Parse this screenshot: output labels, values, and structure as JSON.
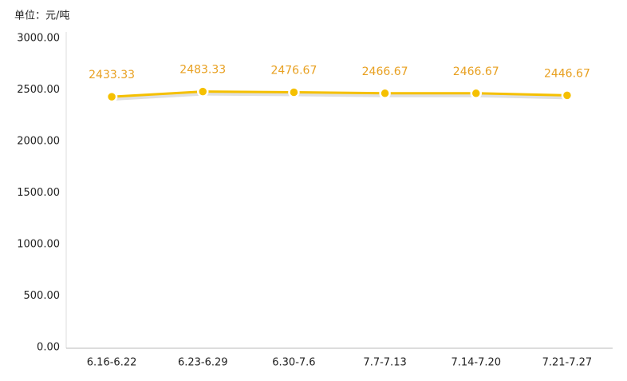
{
  "chart_data": {
    "type": "line",
    "unit_label": "单位：元/吨",
    "categories": [
      "6.16-6.22",
      "6.23-6.29",
      "6.30-7.6",
      "7.7-7.13",
      "7.14-7.20",
      "7.21-7.27"
    ],
    "series": [
      {
        "color": "#f5c000",
        "label_color": "#e8a020",
        "values": [
          2433.33,
          2483.33,
          2476.67,
          2466.67,
          2466.67,
          2446.67
        ]
      }
    ],
    "ylim": [
      0,
      3000
    ],
    "yticks": [
      {
        "value": 0,
        "label": "0.00"
      },
      {
        "value": 500,
        "label": "500.00"
      },
      {
        "value": 1000,
        "label": "1000.00"
      },
      {
        "value": 1500,
        "label": "1500.00"
      },
      {
        "value": 2000,
        "label": "2000.00"
      },
      {
        "value": 2500,
        "label": "2500.00"
      },
      {
        "value": 3000,
        "label": "3000.00"
      }
    ],
    "grid": false
  }
}
